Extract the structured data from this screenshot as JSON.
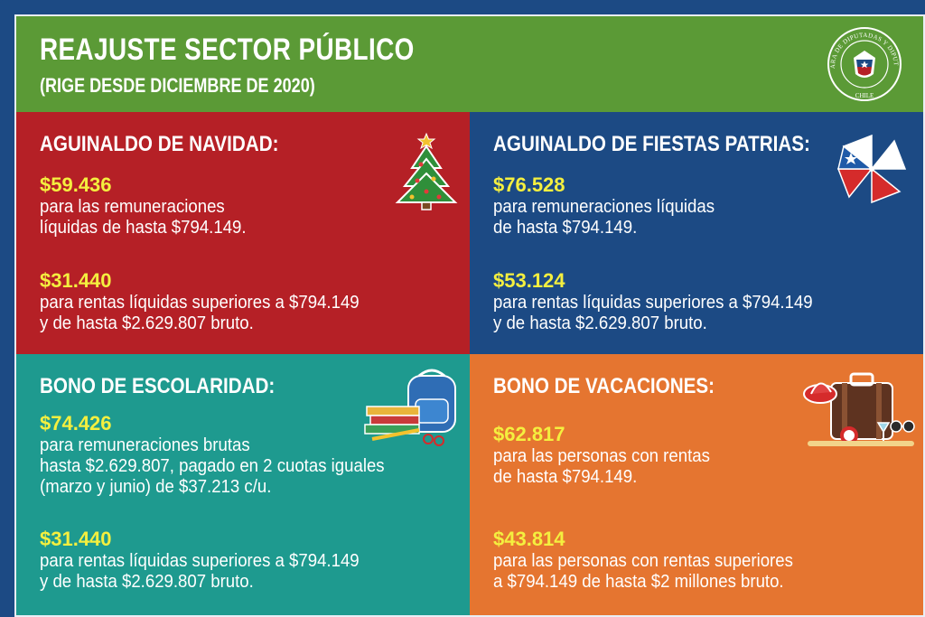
{
  "header": {
    "title": "REAJUSTE SECTOR PÚBLICO",
    "subtitle": "(RIGE DESDE DICIEMBRE DE 2020)",
    "seal_text": "CÁMARA DE DIPUTADAS Y DIPUTADOS",
    "seal_country": "CHILE"
  },
  "panels": {
    "navidad": {
      "title": "AGUINALDO DE NAVIDAD:",
      "icon": "christmas-tree-icon",
      "items": [
        {
          "amount": "$59.436",
          "text": "para las remuneraciones\nlíquidas de hasta $794.149."
        },
        {
          "amount": "$31.440",
          "text": "para rentas líquidas superiores a $794.149\ny de hasta $2.629.807 bruto."
        }
      ]
    },
    "patrias": {
      "title": "AGUINALDO DE FIESTAS PATRIAS:",
      "icon": "pinwheel-icon",
      "items": [
        {
          "amount": "$76.528",
          "text": "para remuneraciones líquidas\nde hasta $794.149."
        },
        {
          "amount": "$53.124",
          "text": "para rentas líquidas superiores a $794.149\ny de hasta $2.629.807 bruto."
        }
      ]
    },
    "escolaridad": {
      "title": "BONO DE ESCOLARIDAD:",
      "icon": "school-backpack-icon",
      "items": [
        {
          "amount": "$74.426",
          "text": "para remuneraciones brutas\nhasta $2.629.807, pagado en 2 cuotas iguales\n(marzo y junio) de $37.213 c/u."
        },
        {
          "amount": "$31.440",
          "text": "para rentas líquidas superiores a $794.149\ny de hasta $2.629.807 bruto."
        }
      ]
    },
    "vacaciones": {
      "title": "BONO DE VACACIONES:",
      "icon": "suitcase-icon",
      "items": [
        {
          "amount": "$62.817",
          "text": "para las personas con rentas\nde hasta $794.149."
        },
        {
          "amount": "$43.814",
          "text": "para las personas con rentas superiores\na $794.149 de hasta $2 millones bruto."
        }
      ]
    }
  },
  "colors": {
    "header_green": "#5b9a36",
    "red": "#b52026",
    "blue": "#1c4a84",
    "teal": "#1e9a8f",
    "orange": "#e57530",
    "amount_yellow": "#f4ef3f"
  }
}
